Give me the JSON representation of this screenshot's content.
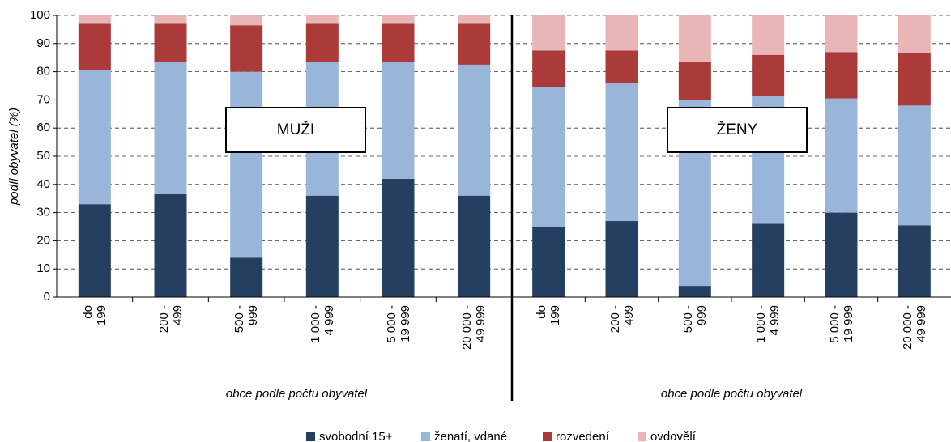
{
  "chart_data": [
    {
      "type": "bar",
      "stacked": true,
      "annotation": "MUŽI",
      "xlabel": "obce podle počtu obyvatel",
      "ylabel": "podíl obyvatel (%)",
      "categories": [
        "do\n199",
        "200 -\n499",
        "500 -\n999",
        "1 000 -\n4 999",
        "5 000 -\n19 999",
        "20 000 -\n49 999"
      ],
      "series": [
        {
          "name": "svobodní 15+",
          "color": "#253f61",
          "values": [
            33,
            36.5,
            14,
            36,
            42,
            36
          ]
        },
        {
          "name": "ženatí, vdané",
          "color": "#99b5da",
          "values": [
            47.5,
            47,
            66,
            47.5,
            41.5,
            46.5
          ]
        },
        {
          "name": "rozvedení",
          "color": "#ab3a3a",
          "values": [
            16.5,
            13.5,
            16.5,
            13.5,
            13.5,
            14.5
          ]
        },
        {
          "name": "ovdovělí",
          "color": "#e9b6b8",
          "values": [
            3,
            3,
            3.5,
            3,
            3,
            3
          ]
        }
      ],
      "ylim": [
        0,
        100
      ],
      "yticks": [
        0,
        10,
        20,
        30,
        40,
        50,
        60,
        70,
        80,
        90,
        100
      ],
      "grid": true
    },
    {
      "type": "bar",
      "stacked": true,
      "annotation": "ŽENY",
      "xlabel": "obce podle počtu obyvatel",
      "categories": [
        "do\n199",
        "200 -\n499",
        "500 -\n999",
        "1 000 -\n4 999",
        "5 000 -\n19 999",
        "20 000 -\n49 999"
      ],
      "series": [
        {
          "color": "#253f61",
          "values": [
            25,
            27,
            4,
            26,
            30,
            25.5
          ]
        },
        {
          "color": "#99b5da",
          "values": [
            49.5,
            49,
            66,
            45.5,
            40.5,
            42.5
          ]
        },
        {
          "color": "#ab3a3a",
          "values": [
            13,
            11.5,
            13.5,
            14.5,
            16.5,
            18.5
          ]
        },
        {
          "color": "#e9b6b8",
          "values": [
            12.5,
            12.5,
            16.5,
            14,
            13,
            13.5
          ]
        }
      ],
      "ylim": [
        0,
        100
      ],
      "grid": true
    }
  ]
}
